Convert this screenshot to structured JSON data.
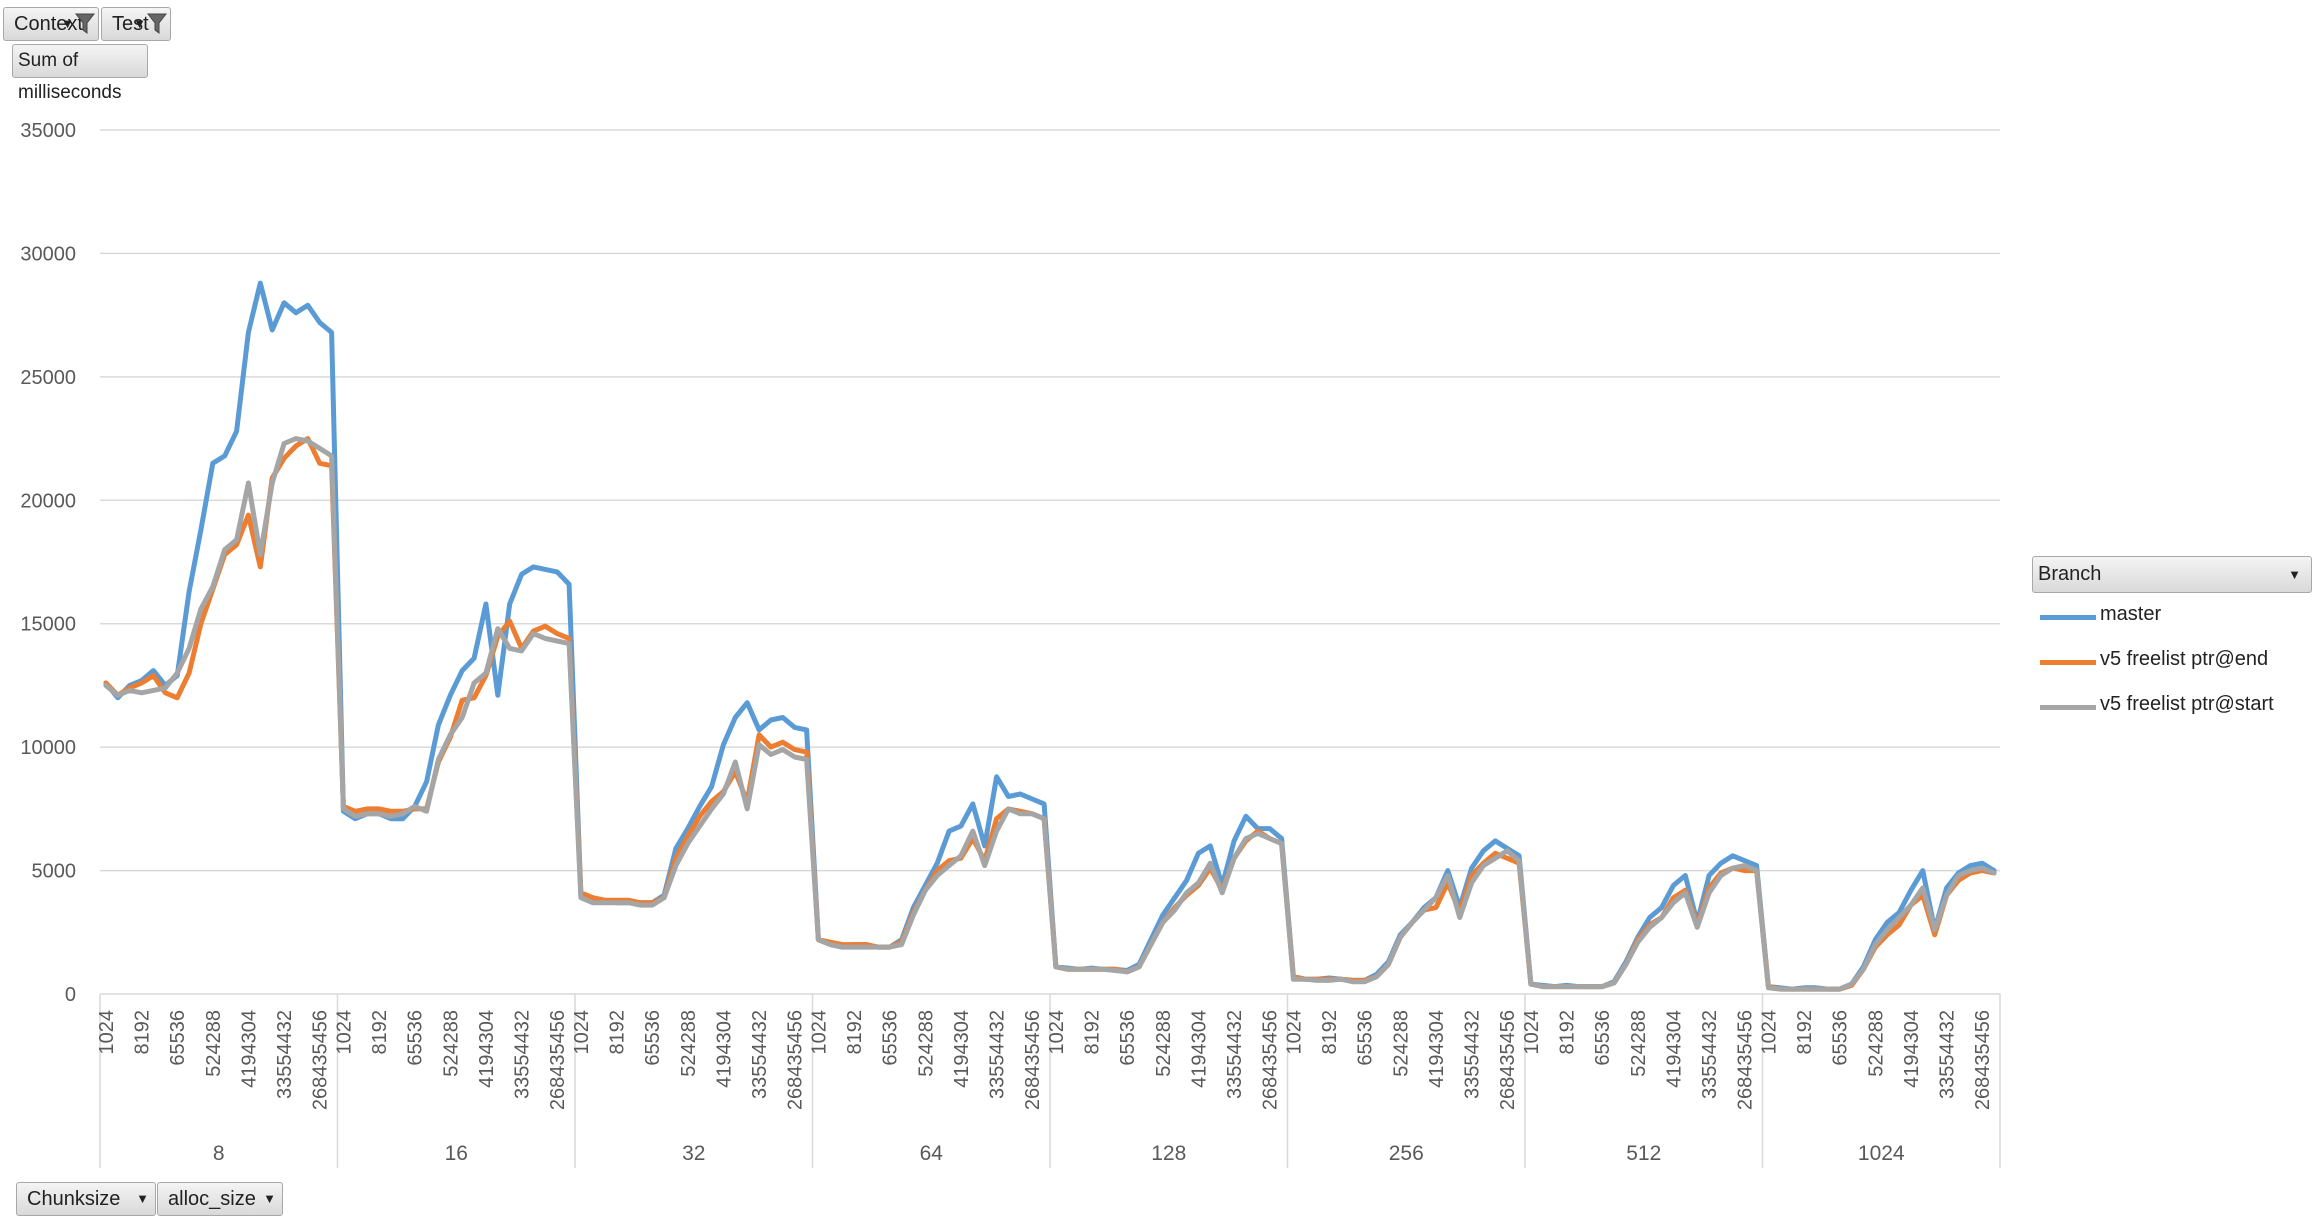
{
  "filters": {
    "top": [
      {
        "label": "Context",
        "icon": "filter-icon"
      },
      {
        "label": "Test",
        "icon": "filter-icon"
      }
    ],
    "values_button": "Sum of milliseconds",
    "bottom": [
      {
        "label": "Chunksize",
        "icon": "dropdown-arrow-icon"
      },
      {
        "label": "alloc_size",
        "icon": "dropdown-arrow-icon"
      }
    ],
    "legend_field": "Branch"
  },
  "chart_data": {
    "type": "line",
    "ylim": [
      0,
      35000
    ],
    "yticks": [
      0,
      5000,
      10000,
      15000,
      20000,
      25000,
      30000,
      35000
    ],
    "grid": true,
    "legend_position": "right",
    "group_labels": [
      "8",
      "16",
      "32",
      "64",
      "128",
      "256",
      "512",
      "1024"
    ],
    "sub_labels": [
      "1024",
      "8192",
      "65536",
      "524288",
      "4194304",
      "33554432",
      "268435456"
    ],
    "points_per_group": 20,
    "series": [
      {
        "name": "master",
        "color": "#5b9bd5",
        "values": [
          12600,
          12000,
          12500,
          12700,
          13100,
          12500,
          12900,
          16300,
          18800,
          21500,
          21800,
          22800,
          26800,
          28800,
          26900,
          28000,
          27600,
          27900,
          27200,
          26800,
          7400,
          7100,
          7300,
          7300,
          7100,
          7100,
          7600,
          8600,
          10900,
          12100,
          13100,
          13600,
          15800,
          12100,
          15800,
          17000,
          17300,
          17200,
          17100,
          16600,
          4000,
          3800,
          3800,
          3700,
          3700,
          3700,
          3700,
          4000,
          5900,
          6700,
          7600,
          8400,
          10100,
          11200,
          11800,
          10700,
          11100,
          11200,
          10800,
          10700,
          2200,
          2000,
          1900,
          2000,
          2000,
          1900,
          1900,
          2200,
          3500,
          4400,
          5300,
          6600,
          6800,
          7700,
          6000,
          8800,
          8000,
          8100,
          7900,
          7700,
          1100,
          1050,
          1000,
          1050,
          1000,
          1000,
          950,
          1200,
          2200,
          3200,
          3900,
          4600,
          5700,
          6000,
          4400,
          6200,
          7200,
          6700,
          6700,
          6300,
          700,
          600,
          600,
          650,
          600,
          550,
          550,
          800,
          1300,
          2400,
          2900,
          3500,
          3900,
          5000,
          3500,
          5100,
          5800,
          6200,
          5900,
          5600,
          400,
          350,
          300,
          350,
          300,
          300,
          300,
          500,
          1300,
          2300,
          3100,
          3500,
          4400,
          4800,
          2900,
          4800,
          5300,
          5600,
          5400,
          5200,
          300,
          250,
          200,
          250,
          250,
          200,
          200,
          400,
          1100,
          2200,
          2900,
          3300,
          4200,
          5000,
          2600,
          4300,
          4900,
          5200,
          5300,
          5000
        ]
      },
      {
        "name": "v5 freelist ptr@end",
        "color": "#ed7d31",
        "values": [
          12600,
          12100,
          12400,
          12600,
          12900,
          12200,
          12000,
          13000,
          15000,
          16400,
          17800,
          18200,
          19400,
          17300,
          20900,
          21700,
          22200,
          22500,
          21500,
          21400,
          7600,
          7400,
          7500,
          7500,
          7400,
          7400,
          7500,
          7500,
          9400,
          10400,
          11900,
          12000,
          12900,
          14500,
          15100,
          14000,
          14700,
          14900,
          14600,
          14400,
          4100,
          3900,
          3800,
          3800,
          3800,
          3700,
          3700,
          3900,
          5500,
          6400,
          7200,
          7800,
          8200,
          9000,
          7800,
          10500,
          10000,
          10200,
          9900,
          9800,
          2200,
          2100,
          2000,
          2000,
          2000,
          1900,
          1900,
          2100,
          3300,
          4200,
          5000,
          5400,
          5500,
          6300,
          5400,
          7100,
          7500,
          7400,
          7300,
          7100,
          1100,
          1000,
          1000,
          1000,
          1000,
          1000,
          900,
          1100,
          2000,
          2900,
          3500,
          4000,
          4400,
          5100,
          4200,
          5500,
          6200,
          6600,
          6300,
          6100,
          700,
          600,
          600,
          600,
          600,
          550,
          550,
          700,
          1200,
          2300,
          2900,
          3400,
          3500,
          4500,
          3300,
          4800,
          5300,
          5700,
          5500,
          5300,
          400,
          300,
          300,
          300,
          300,
          300,
          300,
          450,
          1200,
          2200,
          2800,
          3100,
          3900,
          4200,
          2800,
          4300,
          4900,
          5100,
          5000,
          5000,
          300,
          200,
          200,
          200,
          200,
          200,
          200,
          350,
          1000,
          1900,
          2400,
          2800,
          3600,
          4000,
          2400,
          4000,
          4600,
          4900,
          5000,
          4900
        ]
      },
      {
        "name": "v5 freelist ptr@start",
        "color": "#a5a5a5",
        "values": [
          12500,
          12100,
          12300,
          12200,
          12300,
          12400,
          13000,
          14000,
          15600,
          16500,
          18000,
          18400,
          20700,
          17800,
          20700,
          22300,
          22500,
          22400,
          22100,
          21800,
          7500,
          7200,
          7300,
          7300,
          7200,
          7300,
          7600,
          7400,
          9500,
          10500,
          11200,
          12600,
          13000,
          14800,
          14000,
          13900,
          14600,
          14400,
          14300,
          14200,
          3900,
          3700,
          3700,
          3700,
          3700,
          3600,
          3600,
          3900,
          5200,
          6100,
          6800,
          7500,
          8100,
          9400,
          7500,
          10100,
          9700,
          9900,
          9600,
          9500,
          2200,
          2000,
          1900,
          1900,
          1900,
          1900,
          1900,
          2000,
          3200,
          4200,
          4800,
          5200,
          5600,
          6600,
          5200,
          6600,
          7500,
          7300,
          7300,
          7100,
          1100,
          1000,
          1000,
          1000,
          1000,
          950,
          900,
          1100,
          2000,
          2900,
          3400,
          4100,
          4500,
          5300,
          4100,
          5500,
          6300,
          6500,
          6300,
          6100,
          600,
          600,
          550,
          550,
          600,
          500,
          500,
          700,
          1200,
          2300,
          2900,
          3400,
          3900,
          4800,
          3100,
          4500,
          5200,
          5500,
          5800,
          5400,
          400,
          300,
          300,
          300,
          300,
          300,
          300,
          450,
          1200,
          2100,
          2700,
          3100,
          3700,
          4100,
          2700,
          4100,
          4800,
          5100,
          5200,
          5000,
          250,
          200,
          200,
          200,
          200,
          200,
          200,
          400,
          1000,
          2000,
          2600,
          3100,
          3600,
          4300,
          2600,
          4000,
          4800,
          5000,
          5100,
          4900
        ]
      }
    ]
  }
}
